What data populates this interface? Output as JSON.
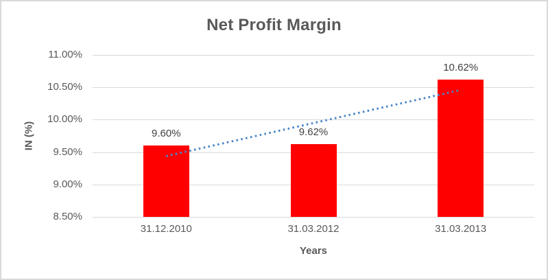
{
  "chart_data": {
    "type": "bar",
    "title": "Net Profit Margin",
    "xlabel": "Years",
    "ylabel": "IN (%)",
    "categories": [
      "31.12.2010",
      "31.03.2012",
      "31.03.2013"
    ],
    "series": [
      {
        "name": "Net Profit Margin",
        "values": [
          9.6,
          9.62,
          10.62
        ],
        "data_labels": [
          "9.60%",
          "9.62%",
          "10.62%"
        ]
      }
    ],
    "yticks": [
      {
        "value": 8.5,
        "label": "8.50%"
      },
      {
        "value": 9.0,
        "label": "9.00%"
      },
      {
        "value": 9.5,
        "label": "9.50%"
      },
      {
        "value": 10.0,
        "label": "10.00%"
      },
      {
        "value": 10.5,
        "label": "10.50%"
      },
      {
        "value": 11.0,
        "label": "11.00%"
      }
    ],
    "ylim": [
      8.5,
      11.0
    ],
    "grid": true,
    "legend": false,
    "trendline": {
      "type": "linear",
      "style": "dotted",
      "start_value": 9.44,
      "end_value": 10.46
    },
    "colors": {
      "bar": "#ff0000",
      "trendline": "#4a86c8",
      "gridline": "#d9d9d9",
      "tick_text": "#595959",
      "data_label_text": "#404040",
      "title_text": "#595959",
      "chart_border": "#d9d9d9"
    }
  }
}
